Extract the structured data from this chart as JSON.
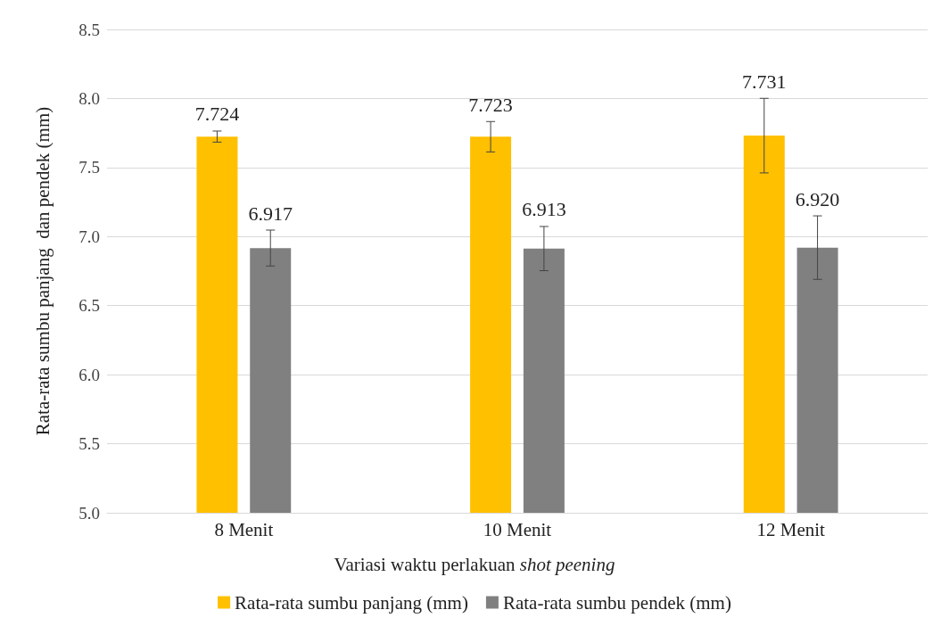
{
  "chart_data": {
    "type": "bar",
    "xlabel": "Variasi waktu perlakuan shot peening",
    "ylabel": "Rata-rata sumbu panjang  dan pendek (mm)",
    "categories": [
      "8 Menit",
      "10 Menit",
      "12 Menit"
    ],
    "series": [
      {
        "name": "Rata-rata sumbu panjang (mm)",
        "color": "#ffc000",
        "values": [
          7.724,
          7.723,
          7.731
        ],
        "value_labels": [
          "7.724",
          "7.723",
          "7.731"
        ],
        "errors": [
          0.04,
          0.11,
          0.27
        ]
      },
      {
        "name": "Rata-rata sumbu pendek (mm)",
        "color": "#808080",
        "values": [
          6.917,
          6.913,
          6.92
        ],
        "value_labels": [
          "6.917",
          "6.913",
          "6.920"
        ],
        "errors": [
          0.13,
          0.16,
          0.23
        ]
      }
    ],
    "ylim": [
      5,
      8.5
    ],
    "yticks": [
      {
        "value": 5,
        "label": "5.0"
      },
      {
        "value": 5.5,
        "label": "5.5"
      },
      {
        "value": 6,
        "label": "6.0"
      },
      {
        "value": 6.5,
        "label": "6.5"
      },
      {
        "value": 7,
        "label": "7.0"
      },
      {
        "value": 7.5,
        "label": "7.5"
      },
      {
        "value": 8,
        "label": "8.0"
      },
      {
        "value": 8.5,
        "label": "8.5"
      }
    ],
    "grid": "y",
    "legend": "bottom"
  }
}
